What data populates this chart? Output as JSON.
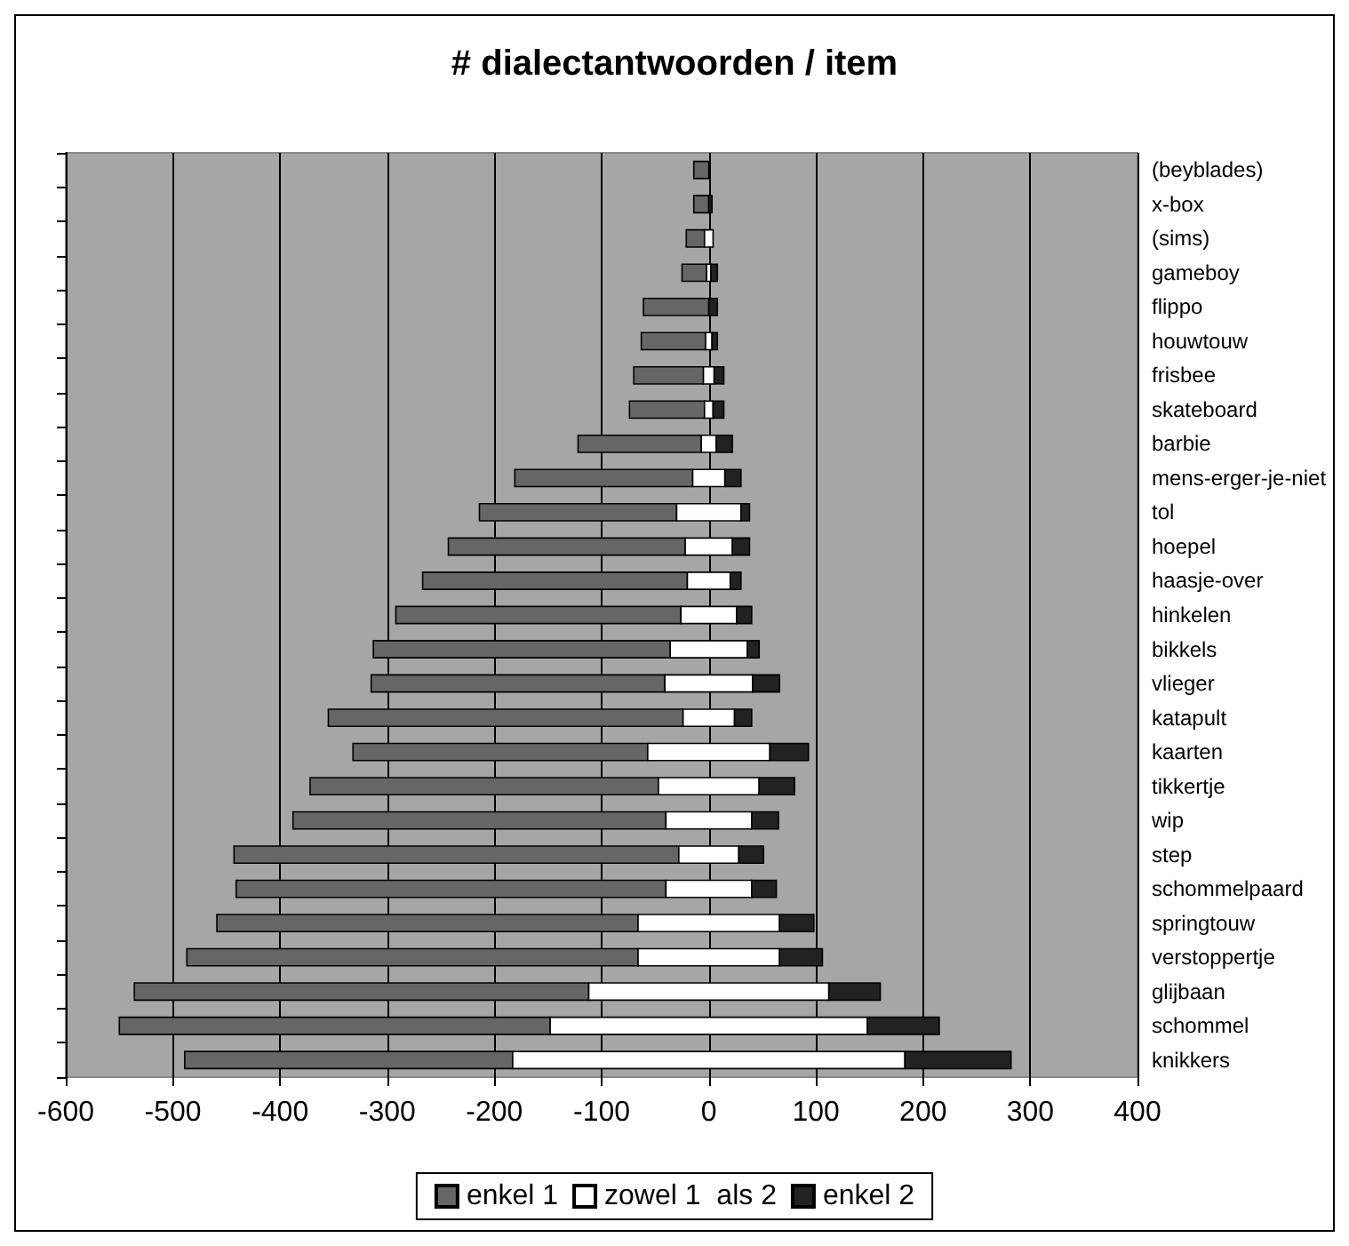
{
  "chart_data": {
    "type": "bar",
    "orientation": "horizontal",
    "title": "# dialectantwoorden / item",
    "categories": [
      "(beyblades)",
      "x-box",
      "(sims)",
      "gameboy",
      "flippo",
      "houwtouw",
      "frisbee",
      "skateboard",
      "barbie",
      "mens-erger-je-niet",
      "tol",
      "hoepel",
      "haasje-over",
      "hinkelen",
      "bikkels",
      "vlieger",
      "katapult",
      "kaarten",
      "tikkertje",
      "wip",
      "step",
      "schommelpaard",
      "springtouw",
      "verstoppertje",
      "glijbaan",
      "schommel",
      "knikkers"
    ],
    "series": [
      {
        "name": "enkel 1",
        "color": "#666666",
        "base": [
          -14,
          -14,
          -21,
          -25,
          -61,
          -63,
          -70,
          -74,
          -122,
          -181,
          -214,
          -243,
          -267,
          -292,
          -313,
          -315,
          -355,
          -332,
          -372,
          -388,
          -443,
          -441,
          -459,
          -487,
          -536,
          -550,
          -489
        ],
        "values": [
          14,
          14,
          17,
          23,
          61,
          60,
          65,
          70,
          115,
          166,
          184,
          221,
          247,
          266,
          277,
          274,
          331,
          275,
          325,
          348,
          415,
          401,
          393,
          421,
          424,
          402,
          306
        ]
      },
      {
        "name": "zowel 1  als 2",
        "color": "#ffffff",
        "base": [
          null,
          null,
          -4,
          -2,
          null,
          -3,
          -5,
          -4,
          -7,
          -15,
          -30,
          -22,
          -20,
          -26,
          -36,
          -41,
          -24,
          -57,
          -47,
          -40,
          -28,
          -40,
          -66,
          -66,
          -112,
          -148,
          -183
        ],
        "values": [
          null,
          null,
          8,
          4,
          null,
          6,
          10,
          8,
          14,
          30,
          60,
          44,
          40,
          52,
          72,
          82,
          48,
          114,
          94,
          80,
          56,
          80,
          132,
          132,
          224,
          296,
          366
        ]
      },
      {
        "name": "enkel 2",
        "color": "#222222",
        "base": [
          null,
          0,
          null,
          2,
          0,
          3,
          5,
          4,
          7,
          15,
          30,
          22,
          20,
          26,
          36,
          41,
          24,
          57,
          47,
          40,
          28,
          40,
          66,
          66,
          112,
          148,
          183
        ],
        "values": [
          null,
          3,
          null,
          6,
          8,
          5,
          9,
          10,
          15,
          15,
          8,
          16,
          10,
          14,
          11,
          25,
          16,
          36,
          33,
          25,
          23,
          23,
          32,
          40,
          48,
          67,
          99
        ]
      }
    ],
    "xlim": [
      -600,
      400
    ],
    "xticks": [
      -600,
      -500,
      -400,
      -300,
      -200,
      -100,
      0,
      100,
      200,
      300,
      400
    ],
    "grid": "x",
    "legend": "bottom"
  }
}
